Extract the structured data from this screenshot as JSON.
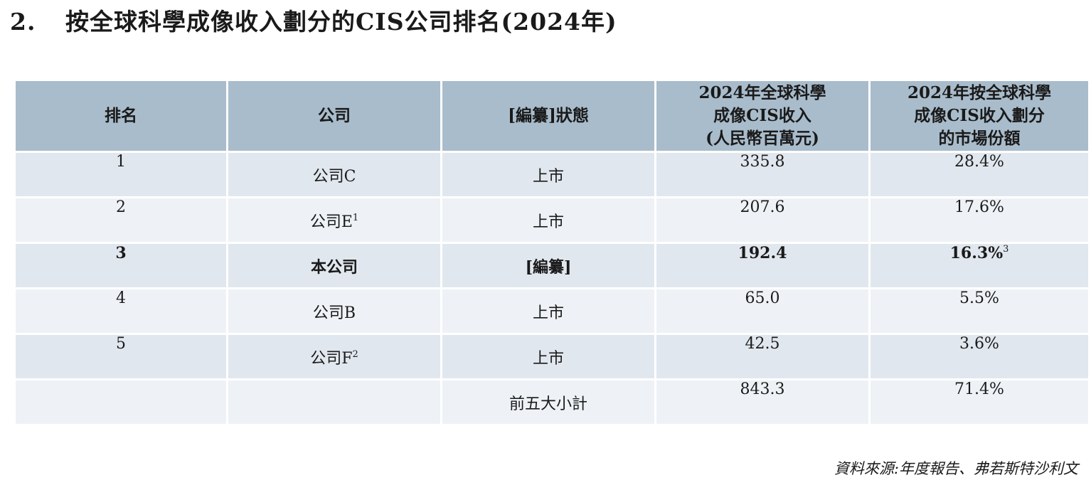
{
  "title": {
    "number": "2.",
    "text": "按全球科學成像收入劃分的CIS公司排名(2024年)"
  },
  "table": {
    "headers": [
      "排名",
      "公司",
      "[編纂]狀態",
      "2024年全球科學\n成像CIS收入\n(人民幣百萬元)",
      "2024年按全球科學\n成像CIS收入劃分\n的市場份額"
    ],
    "rows": [
      {
        "rank": "1",
        "company": "公司C",
        "company_sup": "",
        "status": "上市",
        "revenue": "335.8",
        "share": "28.4%",
        "share_sup": ""
      },
      {
        "rank": "2",
        "company": "公司E",
        "company_sup": "1",
        "status": "上市",
        "revenue": "207.6",
        "share": "17.6%",
        "share_sup": ""
      },
      {
        "rank": "3",
        "company": "本公司",
        "company_sup": "",
        "status": "[編纂]",
        "revenue": "192.4",
        "share": "16.3%",
        "share_sup": "3"
      },
      {
        "rank": "4",
        "company": "公司B",
        "company_sup": "",
        "status": "上市",
        "revenue": "65.0",
        "share": "5.5%",
        "share_sup": ""
      },
      {
        "rank": "5",
        "company": "公司F",
        "company_sup": "2",
        "status": "上市",
        "revenue": "42.5",
        "share": "3.6%",
        "share_sup": ""
      }
    ],
    "subtotal": {
      "label": "前五大小計",
      "revenue": "843.3",
      "share": "71.4%"
    }
  },
  "source": "資料來源:年度報告、弗若斯特沙利文"
}
